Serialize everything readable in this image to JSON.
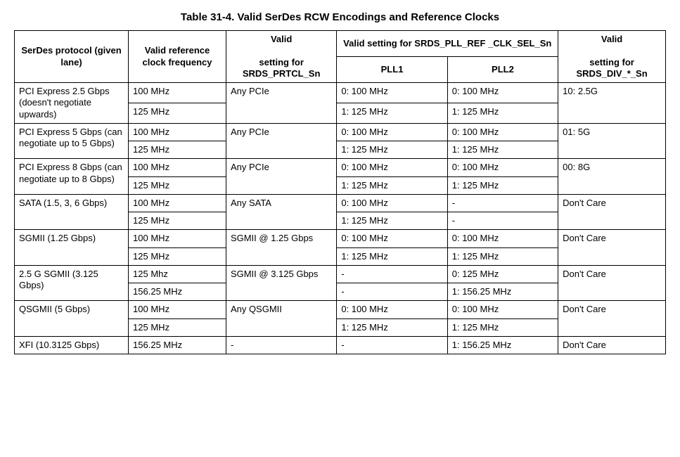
{
  "title": "Table 31-4.  Valid SerDes RCW Encodings and Reference Clocks",
  "headers": {
    "col1": "SerDes protocol (given lane)",
    "col2": "Valid reference clock frequency",
    "col3_top": "Valid",
    "col3_bot": "setting for SRDS_PRTCL_Sn",
    "col45_top": "Valid setting for SRDS_PLL_REF _CLK_SEL_Sn",
    "col4_sub": "PLL1",
    "col5_sub": "PLL2",
    "col6_top": "Valid",
    "col6_bot": "setting for SRDS_DIV_*_Sn"
  },
  "groups": [
    {
      "protocol": "PCI Express 2.5 Gbps (doesn't negotiate upwards)",
      "prtcl": "Any PCIe",
      "div": "10: 2.5G",
      "rows": [
        {
          "clk": "100 MHz",
          "pll1": "0: 100 MHz",
          "pll2": "0: 100 MHz"
        },
        {
          "clk": "125 MHz",
          "pll1": "1: 125 MHz",
          "pll2": "1: 125 MHz"
        }
      ]
    },
    {
      "protocol": "PCI Express 5 Gbps (can negotiate up to 5 Gbps)",
      "prtcl": "Any PCIe",
      "div": "01: 5G",
      "rows": [
        {
          "clk": "100 MHz",
          "pll1": "0: 100 MHz",
          "pll2": "0: 100 MHz"
        },
        {
          "clk": "125 MHz",
          "pll1": "1: 125 MHz",
          "pll2": "1: 125 MHz"
        }
      ]
    },
    {
      "protocol": "PCI Express 8 Gbps (can negotiate up to 8 Gbps)",
      "prtcl": "Any PCIe",
      "div": "00: 8G",
      "rows": [
        {
          "clk": "100 MHz",
          "pll1": "0: 100 MHz",
          "pll2": "0: 100 MHz"
        },
        {
          "clk": "125 MHz",
          "pll1": "1: 125 MHz",
          "pll2": "1: 125 MHz"
        }
      ]
    },
    {
      "protocol": "SATA (1.5, 3, 6 Gbps)",
      "prtcl": "Any SATA",
      "div": "Don't Care",
      "rows": [
        {
          "clk": "100 MHz",
          "pll1": "0: 100 MHz",
          "pll2": "-"
        },
        {
          "clk": "125 MHz",
          "pll1": "1: 125 MHz",
          "pll2": "-"
        }
      ]
    },
    {
      "protocol": "SGMII (1.25 Gbps)",
      "prtcl": "SGMII @ 1.25 Gbps",
      "div": "Don't Care",
      "rows": [
        {
          "clk": "100 MHz",
          "pll1": "0: 100 MHz",
          "pll2": "0: 100 MHz"
        },
        {
          "clk": "125 MHz",
          "pll1": "1: 125 MHz",
          "pll2": "1: 125 MHz"
        }
      ]
    },
    {
      "protocol": "2.5 G SGMII (3.125 Gbps)",
      "prtcl": "SGMII @ 3.125 Gbps",
      "div": "Don't Care",
      "rows": [
        {
          "clk": "125 Mhz",
          "pll1": "-",
          "pll2": "0: 125 MHz"
        },
        {
          "clk": "156.25 MHz",
          "pll1": "-",
          "pll2": "1: 156.25 MHz"
        }
      ]
    },
    {
      "protocol": "QSGMII (5 Gbps)",
      "prtcl": "Any QSGMII",
      "div": "Don't Care",
      "rows": [
        {
          "clk": "100 MHz",
          "pll1": "0: 100 MHz",
          "pll2": "0: 100 MHz"
        },
        {
          "clk": "125 MHz",
          "pll1": "1: 125 MHz",
          "pll2": "1: 125 MHz"
        }
      ]
    },
    {
      "protocol": "XFI (10.3125 Gbps)",
      "prtcl": "-",
      "div": "Don't Care",
      "rows": [
        {
          "clk": "156.25 MHz",
          "pll1": "-",
          "pll2": "1: 156.25 MHz"
        }
      ]
    }
  ]
}
